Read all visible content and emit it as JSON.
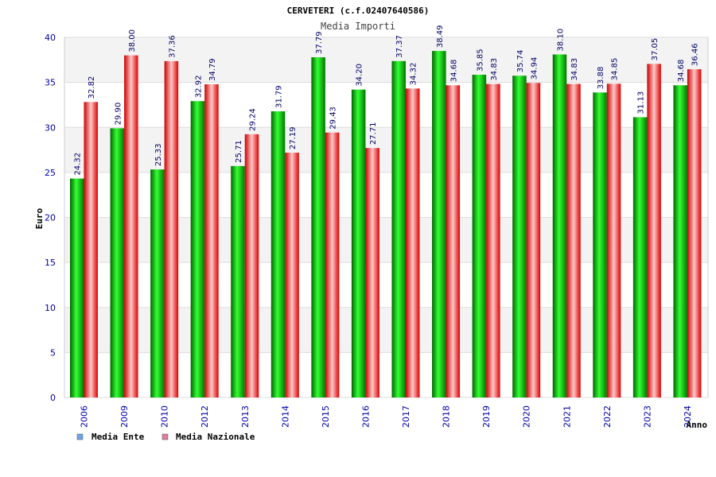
{
  "chart_data": {
    "type": "bar",
    "title": "CERVETERI (c.f.02407640586)",
    "subtitle": "Media Importi",
    "xlabel": "Anno",
    "ylabel": "Euro",
    "ylim": [
      0,
      40
    ],
    "yticks": [
      0,
      5,
      10,
      15,
      20,
      25,
      30,
      35,
      40
    ],
    "grid": true,
    "legend_position": "bottom-left",
    "categories": [
      "2006",
      "2009",
      "2010",
      "2012",
      "2013",
      "2014",
      "2015",
      "2016",
      "2017",
      "2018",
      "2019",
      "2020",
      "2021",
      "2022",
      "2023",
      "2024"
    ],
    "series": [
      {
        "name": "Media Ente",
        "color": "#00bb00",
        "legend_color": "#6aa4e8",
        "values": [
          24.32,
          29.9,
          25.33,
          32.92,
          25.71,
          31.79,
          37.79,
          34.2,
          37.37,
          38.49,
          35.85,
          35.74,
          38.1,
          33.88,
          31.13,
          34.68
        ],
        "labels": [
          "24.32",
          "29.90",
          "25.33",
          "32.92",
          "25.71",
          "31.79",
          "37.79",
          "34.20",
          "37.37",
          "38.49",
          "35.85",
          "35.74",
          "38.10",
          "33.88",
          "31.13",
          "34.68"
        ]
      },
      {
        "name": "Media Nazionale",
        "color": "#e8001c",
        "legend_color": "#e07aa0",
        "values": [
          32.82,
          38.0,
          37.36,
          34.79,
          29.24,
          27.19,
          29.43,
          27.71,
          34.32,
          34.68,
          34.83,
          34.94,
          34.83,
          34.85,
          37.05,
          36.46
        ],
        "labels": [
          "32.82",
          "38.00",
          "37.36",
          "34.79",
          "29.24",
          "27.19",
          "29.43",
          "27.71",
          "34.32",
          "34.68",
          "34.83",
          "34.94",
          "34.83",
          "34.85",
          "37.05",
          "36.46"
        ]
      }
    ]
  }
}
